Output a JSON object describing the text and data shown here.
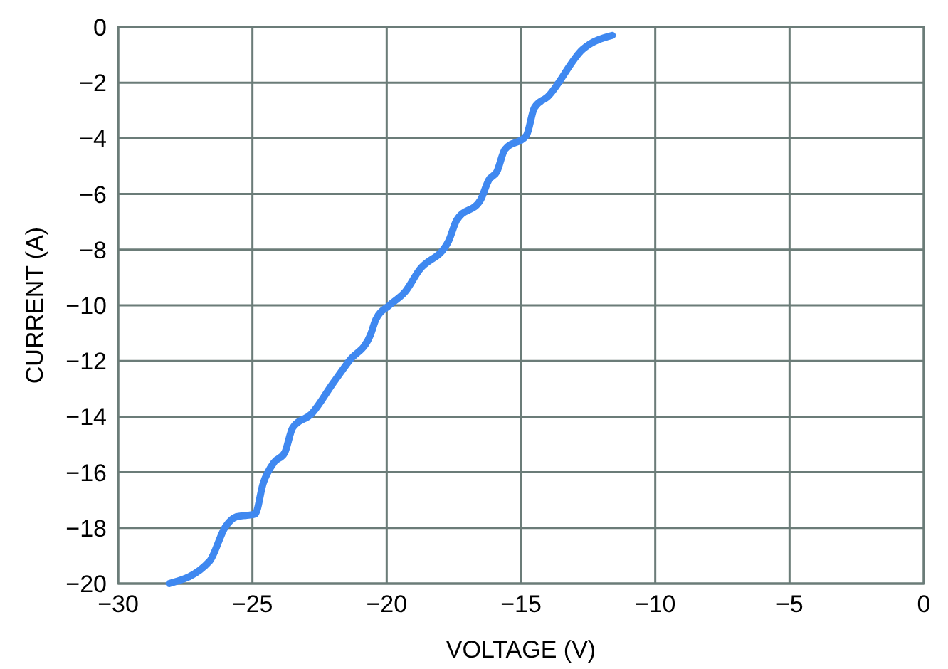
{
  "chart_data": {
    "type": "line",
    "xlabel": "VOLTAGE (V)",
    "ylabel": "CURRENT (A)",
    "xlim": [
      -30,
      0
    ],
    "xticks": [
      {
        "value": -30,
        "label": "−30"
      },
      {
        "value": -25,
        "label": "−25"
      },
      {
        "value": -20,
        "label": "−20"
      },
      {
        "value": -15,
        "label": "−15"
      },
      {
        "value": -10,
        "label": "−10"
      },
      {
        "value": -5,
        "label": "−5"
      },
      0
    ],
    "ylim": [
      -20,
      0
    ],
    "yticks": [
      0,
      {
        "value": -2,
        "label": "−2"
      },
      {
        "value": -4,
        "label": "−4"
      },
      {
        "value": -6,
        "label": "−6"
      },
      {
        "value": -8,
        "label": "−8"
      },
      {
        "value": -10,
        "label": "−10"
      },
      {
        "value": -12,
        "label": "−12"
      },
      {
        "value": -14,
        "label": "−14"
      },
      {
        "value": -16,
        "label": "−16"
      },
      {
        "value": -18,
        "label": "−18"
      },
      {
        "value": -20,
        "label": "−20"
      }
    ],
    "grid": true,
    "line_style": "solid",
    "series": [
      {
        "color": "#3f88f0",
        "x": [
          -28.1,
          -26.6,
          -26.0,
          -25.6,
          -24.9,
          -24.6,
          -24.2,
          -23.8,
          -23.5,
          -22.8,
          -22.0,
          -21.4,
          -20.6,
          -20.4,
          -19.9,
          -19.3,
          -18.8,
          -17.7,
          -17.4,
          -16.5,
          -16.2,
          -15.9,
          -15.6,
          -14.8,
          -14.5,
          -14.0,
          -12.7,
          -11.6
        ],
        "values": [
          -20,
          -19.2,
          -17.95,
          -17.6,
          -17.5,
          -16.4,
          -15.65,
          -15.3,
          -14.4,
          -13.9,
          -12.8,
          -12.0,
          -11.05,
          -10.5,
          -10.0,
          -9.5,
          -8.75,
          -7.7,
          -6.95,
          -6.2,
          -5.5,
          -5.2,
          -4.4,
          -3.9,
          -2.9,
          -2.5,
          -0.8,
          -0.3
        ]
      }
    ]
  }
}
